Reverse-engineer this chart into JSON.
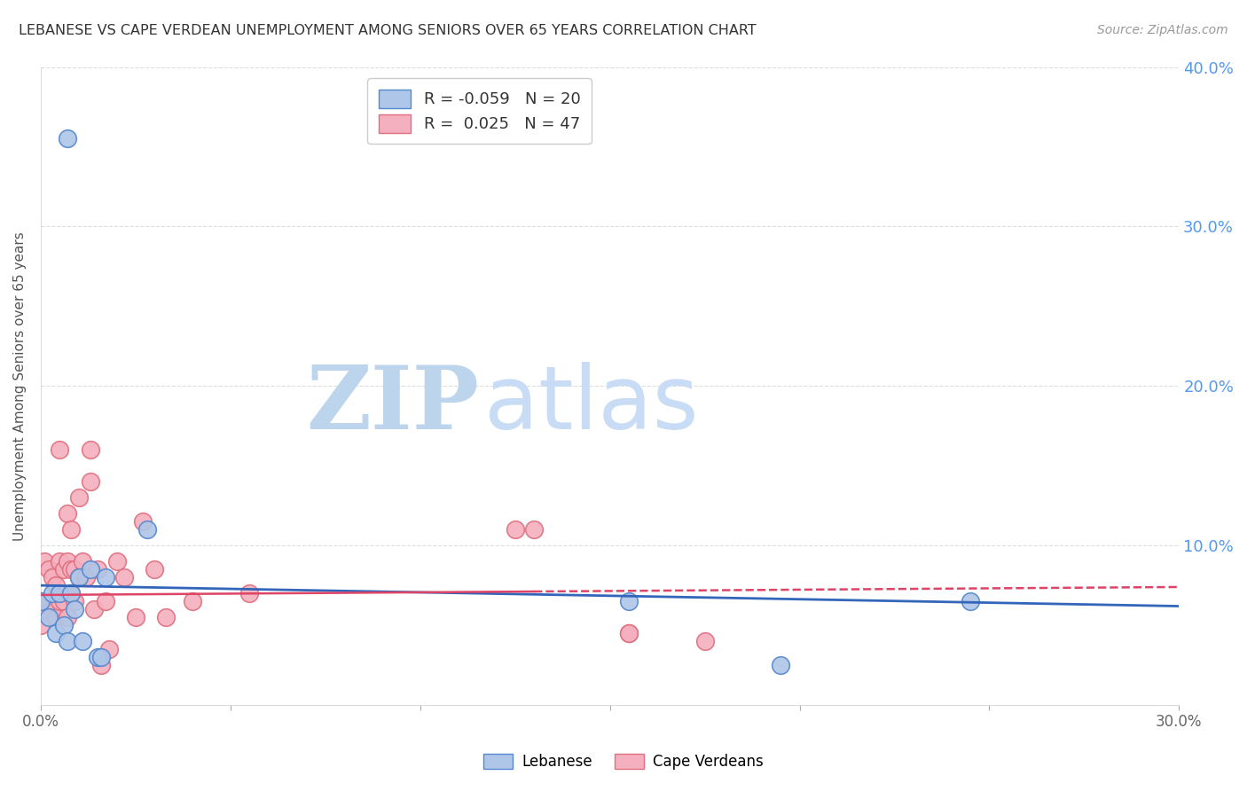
{
  "title": "LEBANESE VS CAPE VERDEAN UNEMPLOYMENT AMONG SENIORS OVER 65 YEARS CORRELATION CHART",
  "source": "Source: ZipAtlas.com",
  "ylabel": "Unemployment Among Seniors over 65 years",
  "xlim": [
    0.0,
    0.3
  ],
  "ylim": [
    0.0,
    0.4
  ],
  "xticks": [
    0.0,
    0.05,
    0.1,
    0.15,
    0.2,
    0.25,
    0.3
  ],
  "xtick_labels": [
    "0.0%",
    "",
    "",
    "",
    "",
    "",
    "30.0%"
  ],
  "yticks": [
    0.0,
    0.1,
    0.2,
    0.3,
    0.4
  ],
  "ytick_labels_right": [
    "",
    "10.0%",
    "20.0%",
    "30.0%",
    "40.0%"
  ],
  "lebanese_x": [
    0.007,
    0.0,
    0.002,
    0.003,
    0.004,
    0.005,
    0.006,
    0.007,
    0.008,
    0.009,
    0.01,
    0.011,
    0.013,
    0.015,
    0.016,
    0.017,
    0.028,
    0.155,
    0.195,
    0.245
  ],
  "lebanese_y": [
    0.355,
    0.065,
    0.055,
    0.07,
    0.045,
    0.07,
    0.05,
    0.04,
    0.07,
    0.06,
    0.08,
    0.04,
    0.085,
    0.03,
    0.03,
    0.08,
    0.11,
    0.065,
    0.025,
    0.065
  ],
  "capeverdean_x": [
    0.0,
    0.0,
    0.001,
    0.001,
    0.002,
    0.002,
    0.003,
    0.003,
    0.004,
    0.004,
    0.005,
    0.005,
    0.005,
    0.006,
    0.006,
    0.007,
    0.007,
    0.007,
    0.008,
    0.008,
    0.008,
    0.009,
    0.009,
    0.01,
    0.01,
    0.011,
    0.012,
    0.013,
    0.013,
    0.014,
    0.015,
    0.016,
    0.017,
    0.018,
    0.02,
    0.022,
    0.025,
    0.027,
    0.03,
    0.033,
    0.04,
    0.055,
    0.125,
    0.13,
    0.155,
    0.155,
    0.175
  ],
  "capeverdean_y": [
    0.065,
    0.05,
    0.06,
    0.09,
    0.065,
    0.085,
    0.06,
    0.08,
    0.055,
    0.075,
    0.065,
    0.09,
    0.16,
    0.065,
    0.085,
    0.055,
    0.09,
    0.12,
    0.07,
    0.085,
    0.11,
    0.065,
    0.085,
    0.08,
    0.13,
    0.09,
    0.08,
    0.14,
    0.16,
    0.06,
    0.085,
    0.025,
    0.065,
    0.035,
    0.09,
    0.08,
    0.055,
    0.115,
    0.085,
    0.055,
    0.065,
    0.07,
    0.11,
    0.11,
    0.045,
    0.045,
    0.04
  ],
  "blue_scatter_color": "#aec6e8",
  "blue_scatter_edge": "#5588cc",
  "pink_scatter_color": "#f4b0be",
  "pink_scatter_edge": "#e07080",
  "blue_line_color": "#3366bb",
  "pink_line_color": "#dd4466",
  "blue_line_start_y": 0.075,
  "blue_line_end_y": 0.062,
  "pink_line_start_y": 0.069,
  "pink_line_end_y": 0.074,
  "watermark_zip_color": "#b8cfe8",
  "watermark_atlas_color": "#c8ddf5",
  "legend_blue_R": "-0.059",
  "legend_blue_N": "20",
  "legend_pink_R": "0.025",
  "legend_pink_N": "47",
  "background_color": "#ffffff",
  "grid_color": "#dddddd",
  "hgrid_yticks": [
    0.1,
    0.2,
    0.3,
    0.4
  ]
}
